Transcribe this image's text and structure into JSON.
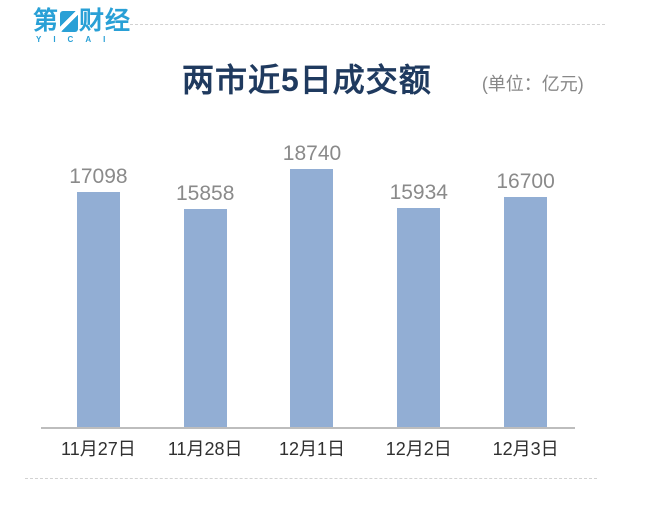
{
  "logo": {
    "char_before": "第",
    "chars_after": "财经",
    "subtext": "YICAI",
    "color": "#29a0d6"
  },
  "chart_data": {
    "type": "bar",
    "title": "两市近5日成交额",
    "unit": "(单位：亿元)",
    "categories": [
      "11月27日",
      "11月28日",
      "12月1日",
      "12月2日",
      "12月3日"
    ],
    "values": [
      17098,
      15858,
      18740,
      15934,
      16700
    ],
    "ylim": [
      0,
      18740
    ],
    "grid": false,
    "value_labels_shown": true,
    "legend": "none",
    "bar_color": "#92aed4",
    "title_color": "#1f3a5f",
    "value_label_color": "#8a8a8a",
    "xlabel_color": "#303030",
    "axis_color": "#bdbdbd",
    "dash_rule_color": "#d2d2d2"
  }
}
